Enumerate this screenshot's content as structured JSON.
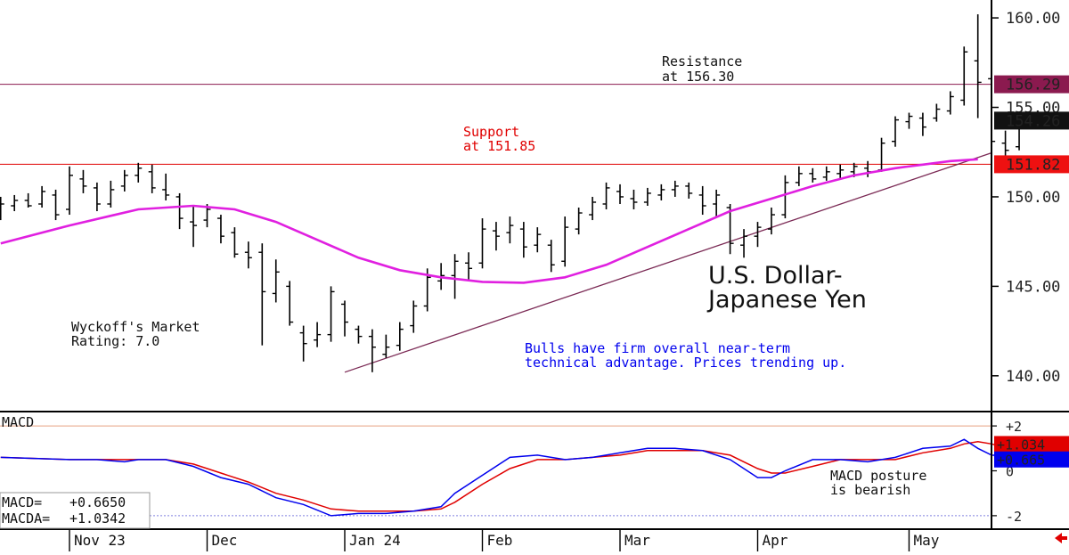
{
  "chart_data": {
    "type": "ohlc",
    "title": "U.S. Dollar-Japanese Yen",
    "title_lines": [
      "U.S. Dollar-",
      "Japanese Yen"
    ],
    "rating_lines": [
      "Wyckoff's Market",
      "Rating: 7.0"
    ],
    "comment_lines": [
      "Bulls have firm overall near-term",
      "technical advantage. Prices trending up."
    ],
    "price_axis": {
      "ticks": [
        "160.00",
        "155.00",
        "150.00",
        "145.00",
        "140.00"
      ],
      "tick_values": [
        160,
        155,
        150,
        145,
        140
      ],
      "ylim": [
        138.0,
        161.0
      ]
    },
    "date_labels": [
      "Nov 23",
      "Dec",
      "Jan 24",
      "Feb",
      "Mar",
      "Apr",
      "May"
    ],
    "date_label_bar_index": [
      0,
      10,
      20,
      30,
      40,
      50,
      61
    ],
    "start_bar_index": -5,
    "lines": {
      "resistance": {
        "value": 156.29,
        "label": "156.29",
        "note_lines": [
          "Resistance",
          "at 156.30"
        ],
        "color": "#8b1a4f"
      },
      "support": {
        "value": 151.82,
        "label": "151.82",
        "note_lines": [
          "Support",
          "at 151.85"
        ],
        "color": "#e00000"
      },
      "last": {
        "value": 154.26,
        "label": "154.26"
      },
      "trendline": {
        "from": {
          "bar": 20,
          "value": 140.2
        },
        "to": {
          "bar": 66,
          "value": 152.2
        },
        "color": "#7b2a55"
      }
    },
    "moving_average": {
      "color": "#e020e0",
      "points": [
        [
          -5,
          147.4
        ],
        [
          0,
          148.4
        ],
        [
          5,
          149.3
        ],
        [
          9,
          149.5
        ],
        [
          12,
          149.3
        ],
        [
          15,
          148.6
        ],
        [
          18,
          147.6
        ],
        [
          21,
          146.6
        ],
        [
          24,
          145.9
        ],
        [
          27,
          145.5
        ],
        [
          30,
          145.25
        ],
        [
          33,
          145.2
        ],
        [
          36,
          145.5
        ],
        [
          39,
          146.2
        ],
        [
          42,
          147.2
        ],
        [
          45,
          148.2
        ],
        [
          48,
          149.2
        ],
        [
          51,
          149.9
        ],
        [
          54,
          150.6
        ],
        [
          57,
          151.2
        ],
        [
          60,
          151.6
        ],
        [
          62,
          151.8
        ],
        [
          64,
          152.0
        ],
        [
          66,
          152.1
        ]
      ]
    },
    "ohlc": [
      {
        "i": -5,
        "h": 150.0,
        "l": 148.7,
        "o": 149.0,
        "c": 149.6
      },
      {
        "i": -4,
        "h": 150.1,
        "l": 149.2,
        "o": 149.5,
        "c": 149.8
      },
      {
        "i": -3,
        "h": 150.2,
        "l": 149.4,
        "o": 149.8,
        "c": 149.5
      },
      {
        "i": -2,
        "h": 150.6,
        "l": 149.4,
        "o": 149.6,
        "c": 150.3
      },
      {
        "i": -1,
        "h": 150.4,
        "l": 148.7,
        "o": 150.1,
        "c": 149.0
      },
      {
        "i": 0,
        "h": 151.7,
        "l": 149.0,
        "o": 149.3,
        "c": 151.2
      },
      {
        "i": 1,
        "h": 151.5,
        "l": 150.2,
        "o": 151.0,
        "c": 150.6
      },
      {
        "i": 2,
        "h": 150.8,
        "l": 149.2,
        "o": 150.5,
        "c": 149.6
      },
      {
        "i": 3,
        "h": 150.9,
        "l": 149.4,
        "o": 149.6,
        "c": 150.4
      },
      {
        "i": 4,
        "h": 151.5,
        "l": 150.3,
        "o": 150.6,
        "c": 151.2
      },
      {
        "i": 5,
        "h": 151.9,
        "l": 150.8,
        "o": 151.2,
        "c": 151.6
      },
      {
        "i": 6,
        "h": 151.8,
        "l": 150.2,
        "o": 151.4,
        "c": 150.5
      },
      {
        "i": 7,
        "h": 151.3,
        "l": 149.8,
        "o": 150.4,
        "c": 150.1
      },
      {
        "i": 8,
        "h": 150.2,
        "l": 148.2,
        "o": 150.0,
        "c": 148.8
      },
      {
        "i": 9,
        "h": 149.5,
        "l": 147.2,
        "o": 148.6,
        "c": 148.4
      },
      {
        "i": 10,
        "h": 149.6,
        "l": 148.3,
        "o": 148.7,
        "c": 149.3
      },
      {
        "i": 11,
        "h": 149.0,
        "l": 147.4,
        "o": 148.8,
        "c": 147.8
      },
      {
        "i": 12,
        "h": 148.3,
        "l": 146.6,
        "o": 148.0,
        "c": 146.8
      },
      {
        "i": 13,
        "h": 147.5,
        "l": 146.0,
        "o": 146.9,
        "c": 146.6
      },
      {
        "i": 14,
        "h": 147.4,
        "l": 141.7,
        "o": 146.9,
        "c": 144.7
      },
      {
        "i": 15,
        "h": 146.5,
        "l": 144.1,
        "o": 144.6,
        "c": 145.8
      },
      {
        "i": 16,
        "h": 145.3,
        "l": 142.8,
        "o": 145.0,
        "c": 143.0
      },
      {
        "i": 17,
        "h": 142.8,
        "l": 140.8,
        "o": 142.4,
        "c": 141.8
      },
      {
        "i": 18,
        "h": 143.0,
        "l": 141.6,
        "o": 142.0,
        "c": 142.3
      },
      {
        "i": 19,
        "h": 145.0,
        "l": 141.9,
        "o": 142.3,
        "c": 144.7
      },
      {
        "i": 20,
        "h": 144.2,
        "l": 142.2,
        "o": 144.0,
        "c": 143.0
      },
      {
        "i": 21,
        "h": 142.8,
        "l": 141.8,
        "o": 142.6,
        "c": 142.2
      },
      {
        "i": 22,
        "h": 142.6,
        "l": 140.2,
        "o": 142.2,
        "c": 141.6
      },
      {
        "i": 23,
        "h": 142.3,
        "l": 141.0,
        "o": 141.2,
        "c": 141.6
      },
      {
        "i": 24,
        "h": 143.0,
        "l": 141.4,
        "o": 141.7,
        "c": 142.6
      },
      {
        "i": 25,
        "h": 144.2,
        "l": 142.4,
        "o": 142.8,
        "c": 143.9
      },
      {
        "i": 26,
        "h": 146.0,
        "l": 143.6,
        "o": 143.9,
        "c": 145.5
      },
      {
        "i": 27,
        "h": 146.3,
        "l": 144.8,
        "o": 145.3,
        "c": 145.6
      },
      {
        "i": 28,
        "h": 146.8,
        "l": 144.3,
        "o": 145.6,
        "c": 146.4
      },
      {
        "i": 29,
        "h": 146.9,
        "l": 145.3,
        "o": 146.3,
        "c": 146.0
      },
      {
        "i": 30,
        "h": 148.8,
        "l": 146.0,
        "o": 146.3,
        "c": 148.2
      },
      {
        "i": 31,
        "h": 148.6,
        "l": 147.0,
        "o": 148.1,
        "c": 147.8
      },
      {
        "i": 32,
        "h": 148.9,
        "l": 147.4,
        "o": 148.0,
        "c": 148.4
      },
      {
        "i": 33,
        "h": 148.6,
        "l": 146.6,
        "o": 148.2,
        "c": 147.2
      },
      {
        "i": 34,
        "h": 148.3,
        "l": 146.9,
        "o": 147.3,
        "c": 147.9
      },
      {
        "i": 35,
        "h": 147.6,
        "l": 145.8,
        "o": 147.3,
        "c": 146.2
      },
      {
        "i": 36,
        "h": 148.9,
        "l": 146.1,
        "o": 146.4,
        "c": 148.3
      },
      {
        "i": 37,
        "h": 149.4,
        "l": 147.9,
        "o": 148.2,
        "c": 149.1
      },
      {
        "i": 38,
        "h": 150.0,
        "l": 148.7,
        "o": 149.0,
        "c": 149.7
      },
      {
        "i": 39,
        "h": 150.8,
        "l": 149.3,
        "o": 149.6,
        "c": 150.5
      },
      {
        "i": 40,
        "h": 150.7,
        "l": 149.6,
        "o": 150.3,
        "c": 150.0
      },
      {
        "i": 41,
        "h": 150.4,
        "l": 149.3,
        "o": 149.9,
        "c": 149.7
      },
      {
        "i": 42,
        "h": 150.5,
        "l": 149.5,
        "o": 149.7,
        "c": 150.2
      },
      {
        "i": 43,
        "h": 150.7,
        "l": 149.8,
        "o": 150.1,
        "c": 150.4
      },
      {
        "i": 44,
        "h": 150.9,
        "l": 150.0,
        "o": 150.4,
        "c": 150.6
      },
      {
        "i": 45,
        "h": 150.8,
        "l": 149.9,
        "o": 150.6,
        "c": 150.2
      },
      {
        "i": 46,
        "h": 150.6,
        "l": 149.0,
        "o": 150.1,
        "c": 149.5
      },
      {
        "i": 47,
        "h": 150.4,
        "l": 148.9,
        "o": 149.6,
        "c": 150.1
      },
      {
        "i": 48,
        "h": 149.6,
        "l": 146.8,
        "o": 149.4,
        "c": 147.4
      },
      {
        "i": 49,
        "h": 148.2,
        "l": 146.6,
        "o": 147.3,
        "c": 147.8
      },
      {
        "i": 50,
        "h": 148.6,
        "l": 147.2,
        "o": 147.8,
        "c": 148.3
      },
      {
        "i": 51,
        "h": 149.4,
        "l": 147.9,
        "o": 148.2,
        "c": 149.0
      },
      {
        "i": 52,
        "h": 151.2,
        "l": 148.8,
        "o": 149.0,
        "c": 150.8
      },
      {
        "i": 53,
        "h": 151.7,
        "l": 150.6,
        "o": 150.8,
        "c": 151.3
      },
      {
        "i": 54,
        "h": 151.6,
        "l": 150.8,
        "o": 151.3,
        "c": 151.0
      },
      {
        "i": 55,
        "h": 151.7,
        "l": 150.9,
        "o": 151.1,
        "c": 151.4
      },
      {
        "i": 56,
        "h": 151.8,
        "l": 151.0,
        "o": 151.3,
        "c": 151.5
      },
      {
        "i": 57,
        "h": 151.9,
        "l": 151.1,
        "o": 151.4,
        "c": 151.7
      },
      {
        "i": 58,
        "h": 152.0,
        "l": 151.1,
        "o": 151.6,
        "c": 151.4
      },
      {
        "i": 59,
        "h": 153.3,
        "l": 151.4,
        "o": 151.5,
        "c": 153.0
      },
      {
        "i": 60,
        "h": 154.5,
        "l": 152.8,
        "o": 153.1,
        "c": 154.3
      },
      {
        "i": 61,
        "h": 154.7,
        "l": 153.8,
        "o": 154.2,
        "c": 154.5
      },
      {
        "i": 62,
        "h": 154.7,
        "l": 153.4,
        "o": 154.4,
        "c": 153.9
      },
      {
        "i": 63,
        "h": 155.2,
        "l": 154.2,
        "o": 154.4,
        "c": 154.9
      },
      {
        "i": 64,
        "h": 155.9,
        "l": 154.6,
        "o": 154.8,
        "c": 155.6
      },
      {
        "i": 65,
        "h": 158.4,
        "l": 155.1,
        "o": 155.4,
        "c": 158.1
      },
      {
        "i": 66,
        "h": 160.2,
        "l": 154.4,
        "o": 157.6,
        "c": 156.4
      },
      {
        "i": 67,
        "h": 158.0,
        "l": 152.7,
        "o": 156.6,
        "c": 153.1
      },
      {
        "i": 68,
        "h": 153.7,
        "l": 151.9,
        "o": 153.0,
        "c": 152.6
      },
      {
        "i": 69,
        "h": 154.6,
        "l": 152.6,
        "o": 152.8,
        "c": 154.26
      }
    ],
    "macd": {
      "label": "MACD",
      "ticks": [
        "+2",
        "0",
        "-2"
      ],
      "tick_values": [
        2,
        0,
        -2
      ],
      "ylim": [
        -2.6,
        2.6
      ],
      "readout": [
        {
          "name": "MACD=",
          "value": "+0.6650"
        },
        {
          "name": "MACDA=",
          "value": "+1.0342"
        }
      ],
      "badges": [
        {
          "label": "+1.034",
          "value": 1.034,
          "color": "#e00000"
        },
        {
          "label": "+0.665",
          "value": 0.665,
          "color": "#0000ee"
        }
      ],
      "note_lines": [
        "MACD posture",
        "is bearish"
      ],
      "macd_series": {
        "name": "MACD",
        "color": "#0000ee",
        "points": [
          [
            -5,
            0.6
          ],
          [
            0,
            0.5
          ],
          [
            2,
            0.5
          ],
          [
            4,
            0.4
          ],
          [
            5,
            0.5
          ],
          [
            7,
            0.5
          ],
          [
            9,
            0.2
          ],
          [
            11,
            -0.3
          ],
          [
            13,
            -0.6
          ],
          [
            15,
            -1.2
          ],
          [
            17,
            -1.5
          ],
          [
            19,
            -2.0
          ],
          [
            21,
            -1.9
          ],
          [
            23,
            -1.9
          ],
          [
            25,
            -1.8
          ],
          [
            27,
            -1.6
          ],
          [
            28,
            -1.0
          ],
          [
            30,
            -0.2
          ],
          [
            32,
            0.6
          ],
          [
            34,
            0.7
          ],
          [
            36,
            0.5
          ],
          [
            38,
            0.6
          ],
          [
            40,
            0.8
          ],
          [
            42,
            1.0
          ],
          [
            44,
            1.0
          ],
          [
            46,
            0.9
          ],
          [
            48,
            0.5
          ],
          [
            50,
            -0.3
          ],
          [
            51,
            -0.3
          ],
          [
            52,
            0.0
          ],
          [
            54,
            0.5
          ],
          [
            56,
            0.5
          ],
          [
            58,
            0.4
          ],
          [
            60,
            0.6
          ],
          [
            62,
            1.0
          ],
          [
            64,
            1.1
          ],
          [
            65,
            1.4
          ],
          [
            66,
            1.0
          ],
          [
            67,
            0.7
          ],
          [
            68,
            0.665
          ]
        ]
      },
      "signal_series": {
        "name": "MACDA",
        "color": "#e00000",
        "points": [
          [
            -5,
            0.6
          ],
          [
            0,
            0.5
          ],
          [
            3,
            0.5
          ],
          [
            5,
            0.5
          ],
          [
            7,
            0.5
          ],
          [
            9,
            0.3
          ],
          [
            11,
            -0.1
          ],
          [
            13,
            -0.5
          ],
          [
            15,
            -1.0
          ],
          [
            17,
            -1.3
          ],
          [
            19,
            -1.7
          ],
          [
            21,
            -1.8
          ],
          [
            23,
            -1.8
          ],
          [
            25,
            -1.8
          ],
          [
            27,
            -1.7
          ],
          [
            28,
            -1.4
          ],
          [
            30,
            -0.6
          ],
          [
            32,
            0.1
          ],
          [
            34,
            0.5
          ],
          [
            36,
            0.5
          ],
          [
            38,
            0.6
          ],
          [
            40,
            0.7
          ],
          [
            42,
            0.9
          ],
          [
            44,
            0.9
          ],
          [
            46,
            0.9
          ],
          [
            48,
            0.7
          ],
          [
            50,
            0.1
          ],
          [
            51,
            -0.1
          ],
          [
            52,
            -0.1
          ],
          [
            54,
            0.2
          ],
          [
            56,
            0.5
          ],
          [
            58,
            0.5
          ],
          [
            60,
            0.5
          ],
          [
            62,
            0.8
          ],
          [
            64,
            1.0
          ],
          [
            65,
            1.2
          ],
          [
            66,
            1.3
          ],
          [
            67,
            1.2
          ],
          [
            68,
            1.034
          ]
        ]
      }
    }
  }
}
